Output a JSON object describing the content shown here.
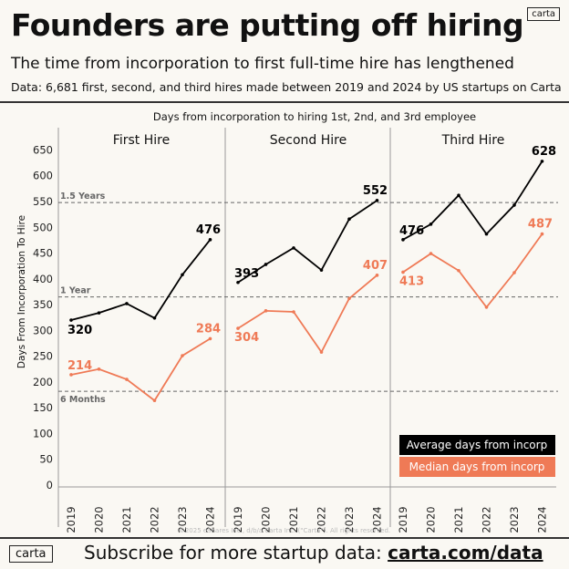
{
  "header": {
    "title": "Founders are putting off hiring",
    "subtitle": "The time from incorporation to first full-time hire has lengthened",
    "source": "Data: 6,681 first, second, and third hires made between 2019 and 2024 by US startups on Carta",
    "logo": "carta"
  },
  "footer": {
    "copyright": "©2025 eShares Inc., d/b/a Carta Inc. (\"Carta\"). All rights reserved.",
    "logo": "carta",
    "subscribe_text": "Subscribe for more startup data: ",
    "subscribe_link": "carta.com/data"
  },
  "chart_data": {
    "type": "line",
    "title": "Days from incorporation to hiring 1st, 2nd, and 3rd employee",
    "ylabel": "Days From Incorporation To Hire",
    "ylim": [
      0,
      650
    ],
    "yticks": [
      0,
      50,
      100,
      150,
      200,
      250,
      300,
      350,
      400,
      450,
      500,
      550,
      600,
      650
    ],
    "x": [
      "2019",
      "2020",
      "2021",
      "2022",
      "2023",
      "2024"
    ],
    "reference_lines": [
      {
        "label": "1.5 Years",
        "value": 548
      },
      {
        "label": "1 Year",
        "value": 365
      },
      {
        "label": "6 Months",
        "value": 182
      }
    ],
    "legend": {
      "placement": "bottom-right",
      "entries": [
        {
          "name": "Average days from incorp",
          "color": "#000000"
        },
        {
          "name": "Median days from incorp",
          "color": "#ef7a56"
        }
      ]
    },
    "panels": [
      {
        "title": "First Hire",
        "series": [
          {
            "name": "Average days from incorp",
            "values": [
              320,
              334,
              352,
              324,
              408,
              476
            ]
          },
          {
            "name": "Median days from incorp",
            "values": [
              214,
              225,
              205,
              164,
              251,
              284
            ]
          }
        ]
      },
      {
        "title": "Second Hire",
        "series": [
          {
            "name": "Average days from incorp",
            "values": [
              393,
              428,
              460,
              417,
              516,
              552
            ]
          },
          {
            "name": "Median days from incorp",
            "values": [
              304,
              338,
              336,
              258,
              362,
              407
            ]
          }
        ]
      },
      {
        "title": "Third Hire",
        "series": [
          {
            "name": "Average days from incorp",
            "values": [
              476,
              506,
              562,
              487,
              543,
              628
            ]
          },
          {
            "name": "Median days from incorp",
            "values": [
              413,
              449,
              416,
              345,
              412,
              487
            ]
          }
        ]
      }
    ]
  }
}
